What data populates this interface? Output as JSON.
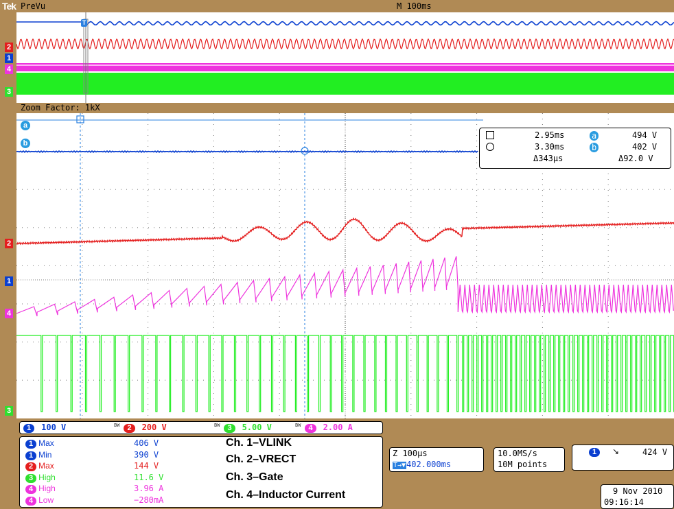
{
  "header": {
    "logo": "Tek",
    "mode": "PreVu",
    "timebase": "M 100ms"
  },
  "zoom": {
    "label": "Zoom Factor: 1kX"
  },
  "markers": {
    "ch1": "1",
    "ch2": "2",
    "ch3": "3",
    "ch4": "4",
    "cursor_a": "a",
    "cursor_b": "b"
  },
  "cursors": {
    "t1": "2.95ms",
    "t2": "3.30ms",
    "dt": "Δ343μs",
    "va": "494 V",
    "vb": "402 V",
    "dv": "Δ92.0 V",
    "a_label": "a",
    "b_label": "b"
  },
  "channels": [
    {
      "num": "1",
      "scale": "100 V",
      "color": "#0a3fd0"
    },
    {
      "num": "2",
      "scale": "200 V",
      "color": "#e41e1e"
    },
    {
      "num": "3",
      "scale": "5.00 V",
      "color": "#2fe02f"
    },
    {
      "num": "4",
      "scale": "2.00 A",
      "color": "#ee33dd"
    }
  ],
  "bw_label": "BW",
  "measurements": [
    {
      "ch": "1",
      "name": "Max",
      "value": "406 V",
      "color": "#0a3fd0",
      "name_color": "#0a3fd0"
    },
    {
      "ch": "1",
      "name": "Min",
      "value": "390 V",
      "color": "#0a3fd0",
      "name_color": "#0a3fd0"
    },
    {
      "ch": "2",
      "name": "Max",
      "value": "144 V",
      "color": "#e41e1e",
      "name_color": "#e41e1e"
    },
    {
      "ch": "3",
      "name": "High",
      "value": "11.6 V",
      "color": "#2fe02f",
      "name_color": "#2fe02f"
    },
    {
      "ch": "4",
      "name": "High",
      "value": "3.96 A",
      "color": "#ee33dd",
      "name_color": "#ee33dd"
    },
    {
      "ch": "4",
      "name": "Low",
      "value": "−280mA",
      "color": "#ee33dd",
      "name_color": "#ee33dd"
    }
  ],
  "legend": [
    "Ch. 1–VLINK",
    "Ch. 2–VRECT",
    "Ch. 3–Gate",
    "Ch. 4–Inductor Current"
  ],
  "zoom_info": {
    "scale": "Z 100μs",
    "position": "402.000ms",
    "pos_icon": "T→▼"
  },
  "acquisition": {
    "rate": "10.0MS/s",
    "points": "10M points"
  },
  "trigger": {
    "ch": "1",
    "slope": "↘",
    "level": "424 V"
  },
  "datetime": {
    "date": "9 Nov 2010",
    "time": "09:16:14"
  }
}
